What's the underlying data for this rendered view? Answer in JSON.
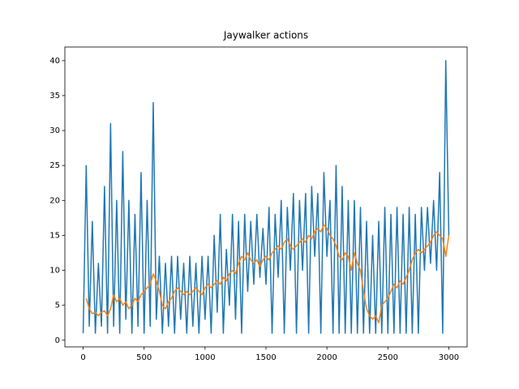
{
  "chart_data": {
    "type": "line",
    "title": "Jaywalker actions",
    "x": [
      0,
      25,
      50,
      75,
      100,
      125,
      150,
      175,
      200,
      225,
      250,
      275,
      300,
      325,
      350,
      375,
      400,
      425,
      450,
      475,
      500,
      525,
      550,
      575,
      600,
      625,
      650,
      675,
      700,
      725,
      750,
      775,
      800,
      825,
      850,
      875,
      900,
      925,
      950,
      975,
      1000,
      1025,
      1050,
      1075,
      1100,
      1125,
      1150,
      1175,
      1200,
      1225,
      1250,
      1275,
      1300,
      1325,
      1350,
      1375,
      1400,
      1425,
      1450,
      1475,
      1500,
      1525,
      1550,
      1575,
      1600,
      1625,
      1650,
      1675,
      1700,
      1725,
      1750,
      1775,
      1800,
      1825,
      1850,
      1875,
      1900,
      1925,
      1950,
      1975,
      2000,
      2025,
      2050,
      2075,
      2100,
      2125,
      2150,
      2175,
      2200,
      2225,
      2250,
      2275,
      2300,
      2325,
      2350,
      2375,
      2400,
      2425,
      2450,
      2475,
      2500,
      2525,
      2550,
      2575,
      2600,
      2625,
      2650,
      2675,
      2700,
      2725,
      2750,
      2775,
      2800,
      2825,
      2850,
      2875,
      2900,
      2925,
      2950,
      2975,
      3000
    ],
    "series": [
      {
        "color": "#1f77b4",
        "values": [
          1,
          25,
          2,
          17,
          1,
          11,
          2,
          22,
          1,
          31,
          2,
          20,
          1,
          27,
          3,
          20,
          1,
          18,
          2,
          24,
          1,
          20,
          2,
          34,
          3,
          12,
          1,
          11,
          2,
          12,
          1,
          12,
          3,
          11,
          1,
          12,
          2,
          11,
          1,
          12,
          3,
          12,
          1,
          15,
          4,
          18,
          1,
          13,
          5,
          18,
          3,
          17,
          1,
          18,
          7,
          17,
          8,
          18,
          9,
          16,
          8,
          19,
          1,
          18,
          9,
          20,
          1,
          19,
          10,
          21,
          1,
          20,
          10,
          21,
          1,
          22,
          12,
          21,
          1,
          24,
          12,
          20,
          1,
          25,
          1,
          22,
          1,
          20,
          1,
          20,
          1,
          19,
          1,
          17,
          1,
          15,
          1,
          17,
          1,
          19,
          1,
          18,
          1,
          19,
          1,
          18,
          1,
          19,
          1,
          18,
          1,
          19,
          10,
          19,
          11,
          20,
          10,
          24,
          1,
          40,
          15
        ]
      },
      {
        "color": "#ff7f0e",
        "values": [
          null,
          6,
          4.5,
          3.8,
          4,
          3.5,
          4,
          4.2,
          3.5,
          4.5,
          6.5,
          5.5,
          6,
          5,
          5.5,
          4.5,
          5,
          6,
          5.5,
          6.5,
          7,
          7.5,
          8,
          9.5,
          8.5,
          7,
          5,
          4.5,
          5.5,
          6,
          7,
          7.5,
          7,
          6.5,
          7,
          6.5,
          7,
          7.5,
          7,
          6.5,
          7.5,
          8,
          7.5,
          8,
          8.5,
          8,
          9,
          8.5,
          9.5,
          10,
          9.5,
          11,
          12,
          11.5,
          12.5,
          11.5,
          11,
          11.5,
          10.5,
          11.5,
          12,
          11.5,
          12.5,
          13,
          13.5,
          13,
          14,
          14.5,
          13.5,
          13,
          13.5,
          14,
          14.5,
          14,
          15,
          14.5,
          15.5,
          16,
          15.5,
          16.5,
          16,
          15,
          14.5,
          13.5,
          12,
          11.5,
          12.5,
          12,
          10,
          12.5,
          11,
          10,
          7,
          4.5,
          3.5,
          3,
          3.5,
          2.5,
          5,
          5.5,
          6,
          7,
          8,
          7.5,
          8.5,
          8,
          9,
          10,
          11.5,
          12.5,
          13,
          12.5,
          13,
          13.5,
          14,
          15,
          15.5,
          15,
          14.5,
          12,
          15
        ]
      }
    ],
    "xlim": [
      -150,
      3150
    ],
    "ylim": [
      -0.95,
      41.95
    ],
    "xticks": [
      0,
      500,
      1000,
      1500,
      2000,
      2500,
      3000
    ],
    "yticks": [
      0,
      5,
      10,
      15,
      20,
      25,
      30,
      35,
      40
    ]
  }
}
